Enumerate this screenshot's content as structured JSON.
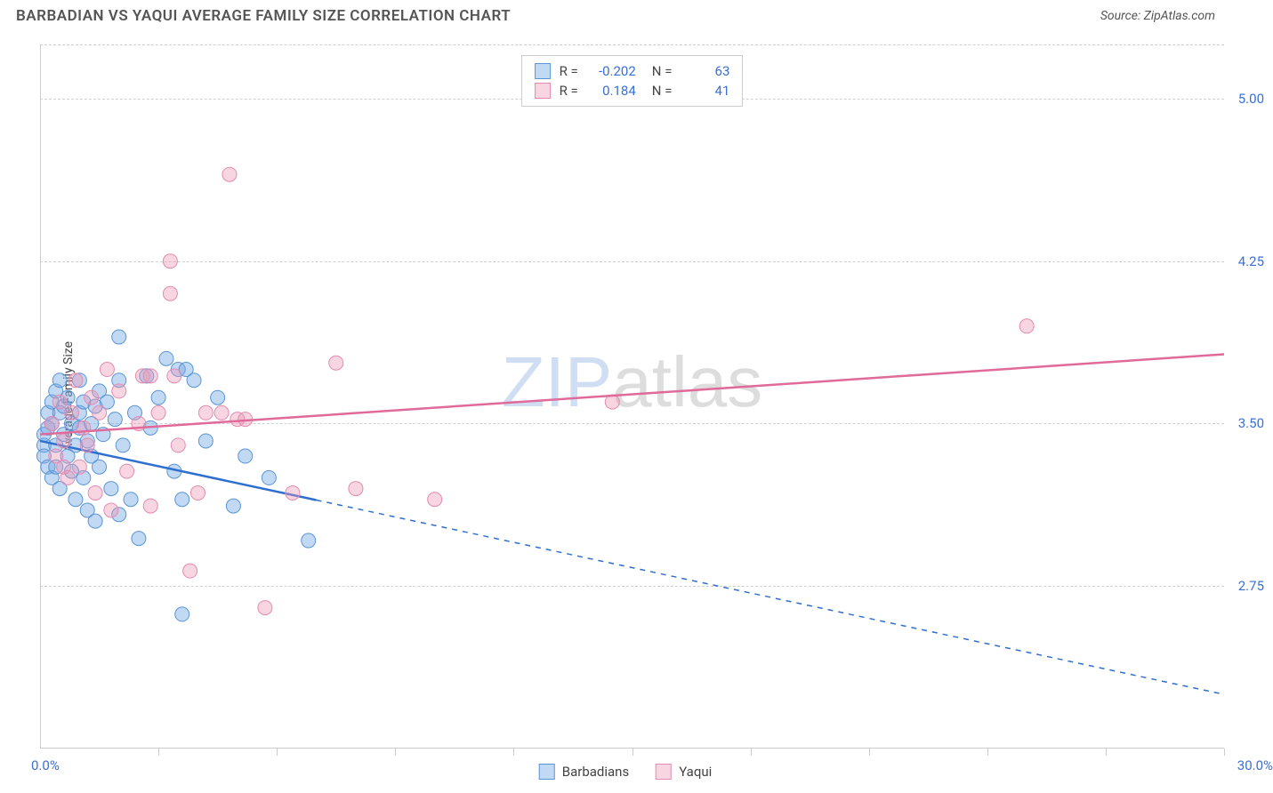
{
  "title": "BARBADIAN VS YAQUI AVERAGE FAMILY SIZE CORRELATION CHART",
  "source": "Source: ZipAtlas.com",
  "ylabel": "Average Family Size",
  "watermark_zip": "ZIP",
  "watermark_atlas": "atlas",
  "chart": {
    "type": "scatter",
    "xlim": [
      0,
      30
    ],
    "ylim": [
      2.0,
      5.25
    ],
    "xmin_label": "0.0%",
    "xmax_label": "30.0%",
    "ytick_values": [
      2.75,
      3.5,
      4.25,
      5.0
    ],
    "ytick_labels": [
      "2.75",
      "3.50",
      "4.25",
      "5.00"
    ],
    "xtick_positions": [
      3,
      6,
      9,
      12,
      15,
      18,
      21,
      24,
      27,
      30
    ],
    "grid_color": "#d0d0d0",
    "axis_color": "#cccccc",
    "background_color": "#ffffff",
    "marker_radius": 8,
    "marker_stroke_width": 1,
    "line_width": 2.5,
    "series": [
      {
        "name": "Barbadians",
        "color_fill": "rgba(120,170,230,0.45)",
        "color_stroke": "#5a95d6",
        "line_color": "#2f6fd0",
        "R": "-0.202",
        "N": "63",
        "trend": {
          "y_at_x0": 3.42,
          "y_at_xmax": 2.25,
          "solid_until_x": 7.0
        },
        "points": [
          [
            0.1,
            3.4
          ],
          [
            0.1,
            3.45
          ],
          [
            0.1,
            3.35
          ],
          [
            0.2,
            3.3
          ],
          [
            0.2,
            3.48
          ],
          [
            0.2,
            3.55
          ],
          [
            0.3,
            3.6
          ],
          [
            0.3,
            3.25
          ],
          [
            0.3,
            3.5
          ],
          [
            0.4,
            3.65
          ],
          [
            0.4,
            3.4
          ],
          [
            0.4,
            3.3
          ],
          [
            0.5,
            3.55
          ],
          [
            0.5,
            3.7
          ],
          [
            0.5,
            3.2
          ],
          [
            0.6,
            3.45
          ],
          [
            0.6,
            3.58
          ],
          [
            0.7,
            3.62
          ],
          [
            0.7,
            3.35
          ],
          [
            0.8,
            3.5
          ],
          [
            0.8,
            3.28
          ],
          [
            0.9,
            3.4
          ],
          [
            0.9,
            3.15
          ],
          [
            1.0,
            3.55
          ],
          [
            1.0,
            3.48
          ],
          [
            1.0,
            3.7
          ],
          [
            1.1,
            3.25
          ],
          [
            1.1,
            3.6
          ],
          [
            1.2,
            3.42
          ],
          [
            1.2,
            3.1
          ],
          [
            1.3,
            3.5
          ],
          [
            1.3,
            3.35
          ],
          [
            1.4,
            3.05
          ],
          [
            1.4,
            3.58
          ],
          [
            1.5,
            3.65
          ],
          [
            1.5,
            3.3
          ],
          [
            1.6,
            3.45
          ],
          [
            1.7,
            3.6
          ],
          [
            1.8,
            3.2
          ],
          [
            1.9,
            3.52
          ],
          [
            2.0,
            3.7
          ],
          [
            2.0,
            3.08
          ],
          [
            2.1,
            3.4
          ],
          [
            2.3,
            3.15
          ],
          [
            2.4,
            3.55
          ],
          [
            2.5,
            2.97
          ],
          [
            2.7,
            3.72
          ],
          [
            2.8,
            3.48
          ],
          [
            3.0,
            3.62
          ],
          [
            3.2,
            3.8
          ],
          [
            3.4,
            3.28
          ],
          [
            3.5,
            3.75
          ],
          [
            3.6,
            3.15
          ],
          [
            3.9,
            3.7
          ],
          [
            4.2,
            3.42
          ],
          [
            4.5,
            3.62
          ],
          [
            4.9,
            3.12
          ],
          [
            5.2,
            3.35
          ],
          [
            5.8,
            3.25
          ],
          [
            6.8,
            2.96
          ],
          [
            2.0,
            3.9
          ],
          [
            3.6,
            2.62
          ],
          [
            3.7,
            3.75
          ]
        ]
      },
      {
        "name": "Yaqui",
        "color_fill": "rgba(235,150,180,0.40)",
        "color_stroke": "#e48bb0",
        "line_color": "#e06a9a",
        "R": "0.184",
        "N": "41",
        "trend": {
          "y_at_x0": 3.45,
          "y_at_xmax": 3.82,
          "solid_until_x": 30.0
        },
        "points": [
          [
            0.3,
            3.5
          ],
          [
            0.4,
            3.35
          ],
          [
            0.5,
            3.6
          ],
          [
            0.6,
            3.42
          ],
          [
            0.7,
            3.25
          ],
          [
            0.8,
            3.55
          ],
          [
            0.9,
            3.7
          ],
          [
            1.0,
            3.3
          ],
          [
            1.1,
            3.48
          ],
          [
            1.3,
            3.62
          ],
          [
            1.4,
            3.18
          ],
          [
            1.5,
            3.55
          ],
          [
            1.7,
            3.75
          ],
          [
            1.8,
            3.1
          ],
          [
            2.0,
            3.65
          ],
          [
            2.2,
            3.28
          ],
          [
            2.5,
            3.5
          ],
          [
            2.6,
            3.72
          ],
          [
            2.8,
            3.12
          ],
          [
            3.0,
            3.55
          ],
          [
            3.3,
            4.25
          ],
          [
            3.3,
            4.1
          ],
          [
            3.4,
            3.72
          ],
          [
            3.5,
            3.4
          ],
          [
            3.8,
            2.82
          ],
          [
            4.0,
            3.18
          ],
          [
            4.2,
            3.55
          ],
          [
            4.6,
            3.55
          ],
          [
            4.8,
            4.65
          ],
          [
            5.0,
            3.52
          ],
          [
            5.2,
            3.52
          ],
          [
            5.7,
            2.65
          ],
          [
            6.4,
            3.18
          ],
          [
            7.5,
            3.78
          ],
          [
            8.0,
            3.2
          ],
          [
            10.0,
            3.15
          ],
          [
            14.5,
            3.6
          ],
          [
            25.0,
            3.95
          ],
          [
            2.8,
            3.72
          ],
          [
            1.2,
            3.4
          ],
          [
            0.6,
            3.3
          ]
        ]
      }
    ]
  },
  "legend_box_labels": {
    "R_prefix": "R =",
    "N_prefix": "N ="
  },
  "colors": {
    "blue_text": "#3b6fd4",
    "title_text": "#555555",
    "body_text": "#444444"
  }
}
